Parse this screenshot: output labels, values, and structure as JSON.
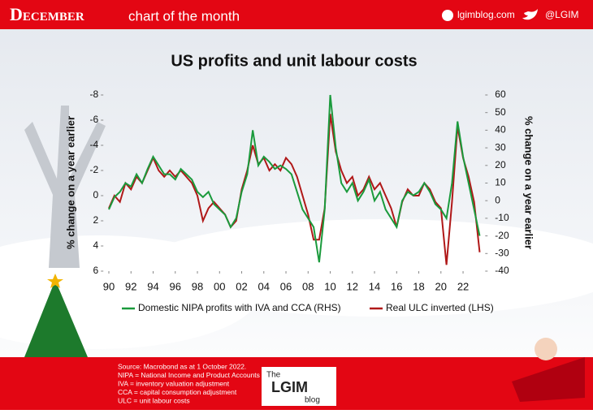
{
  "header": {
    "month": "December",
    "tagline": "chart of the month",
    "site": "lgimblog.com",
    "handle": "@LGIM"
  },
  "footer": {
    "notes": [
      "Source: Macrobond as at 1 October 2022.",
      "NIPA = National Income and Product Accounts",
      "IVA = inventory valuation adjustment",
      "CCA = capital consumption adjustment",
      "ULC = unit labour costs"
    ],
    "logo_top": "The",
    "logo_main": "LGIM",
    "logo_bottom": "blog"
  },
  "chart_data": {
    "type": "line",
    "title": "US profits and unit labour costs",
    "y_label": "% change on a year earlier",
    "y2_label": "% change on a year earlier",
    "x": [
      1990,
      1990.5,
      1991,
      1991.5,
      1992,
      1992.5,
      1993,
      1993.5,
      1994,
      1994.5,
      1995,
      1995.5,
      1996,
      1996.5,
      1997,
      1997.5,
      1998,
      1998.5,
      1999,
      1999.5,
      2000,
      2000.5,
      2001,
      2001.5,
      2002,
      2002.5,
      2003,
      2003.5,
      2004,
      2004.5,
      2005,
      2005.5,
      2006,
      2006.5,
      2007,
      2007.5,
      2008,
      2008.5,
      2009,
      2009.5,
      2010,
      2010.5,
      2011,
      2011.5,
      2012,
      2012.5,
      2013,
      2013.5,
      2014,
      2014.5,
      2015,
      2015.5,
      2016,
      2016.5,
      2017,
      2017.5,
      2018,
      2018.5,
      2019,
      2019.5,
      2020,
      2020.5,
      2021,
      2021.5,
      2022,
      2022.5,
      2023,
      2023.5
    ],
    "xlim": [
      1989.5,
      2024
    ],
    "xticks": [
      {
        "value": 1990,
        "label": "90"
      },
      {
        "value": 1992,
        "label": "92"
      },
      {
        "value": 1994,
        "label": "94"
      },
      {
        "value": 1996,
        "label": "96"
      },
      {
        "value": 1998,
        "label": "98"
      },
      {
        "value": 2000,
        "label": "00"
      },
      {
        "value": 2002,
        "label": "02"
      },
      {
        "value": 2004,
        "label": "04"
      },
      {
        "value": 2006,
        "label": "06"
      },
      {
        "value": 2008,
        "label": "08"
      },
      {
        "value": 2010,
        "label": "10"
      },
      {
        "value": 2012,
        "label": "12"
      },
      {
        "value": 2014,
        "label": "14"
      },
      {
        "value": 2016,
        "label": "16"
      },
      {
        "value": 2018,
        "label": "18"
      },
      {
        "value": 2020,
        "label": "20"
      },
      {
        "value": 2022,
        "label": "22"
      }
    ],
    "ylim": [
      6,
      -8
    ],
    "yticks": [
      -8,
      -6,
      -4,
      -2,
      0,
      2,
      4,
      6
    ],
    "y2lim": [
      -40,
      60
    ],
    "y2ticks": [
      60,
      50,
      40,
      30,
      20,
      10,
      0,
      -10,
      -20,
      -30,
      -40
    ],
    "series": [
      {
        "name": "Domestic NIPA profits with IVA and CCA  (RHS)",
        "color": "#1a9a3c",
        "axis": "y2",
        "values": [
          -5,
          2,
          5,
          10,
          8,
          15,
          10,
          18,
          25,
          20,
          15,
          15,
          12,
          18,
          15,
          12,
          5,
          2,
          5,
          -2,
          -5,
          -8,
          -15,
          -10,
          5,
          15,
          40,
          20,
          25,
          22,
          18,
          20,
          18,
          15,
          5,
          -5,
          -10,
          -15,
          -35,
          -5,
          60,
          30,
          10,
          5,
          10,
          0,
          5,
          12,
          0,
          5,
          -5,
          -10,
          -15,
          0,
          5,
          3,
          5,
          10,
          5,
          -2,
          -5,
          -10,
          10,
          45,
          25,
          10,
          -5,
          -20
        ]
      },
      {
        "name": "Real ULC inverted (LHS)",
        "color": "#b01818",
        "values": [
          1,
          0,
          0.5,
          -1,
          -0.5,
          -1.5,
          -1,
          -2,
          -3,
          -2,
          -1.5,
          -2,
          -1.5,
          -2,
          -1.5,
          -1,
          0,
          2,
          1,
          0.5,
          1,
          1.5,
          2.5,
          2,
          -0.5,
          -2,
          -4,
          -2.5,
          -3,
          -2,
          -2.5,
          -2,
          -3,
          -2.5,
          -1.5,
          0,
          1.5,
          3.5,
          3.5,
          1,
          -6.5,
          -3.5,
          -2,
          -1,
          -1.5,
          0,
          -0.5,
          -1.5,
          -0.5,
          -1,
          0,
          1,
          2.5,
          0.5,
          -0.5,
          0,
          0,
          -1,
          -0.5,
          0.5,
          1,
          5.5,
          0.5,
          -5.5,
          -3,
          -1.5,
          0.5,
          4.5
        ]
      }
    ]
  }
}
